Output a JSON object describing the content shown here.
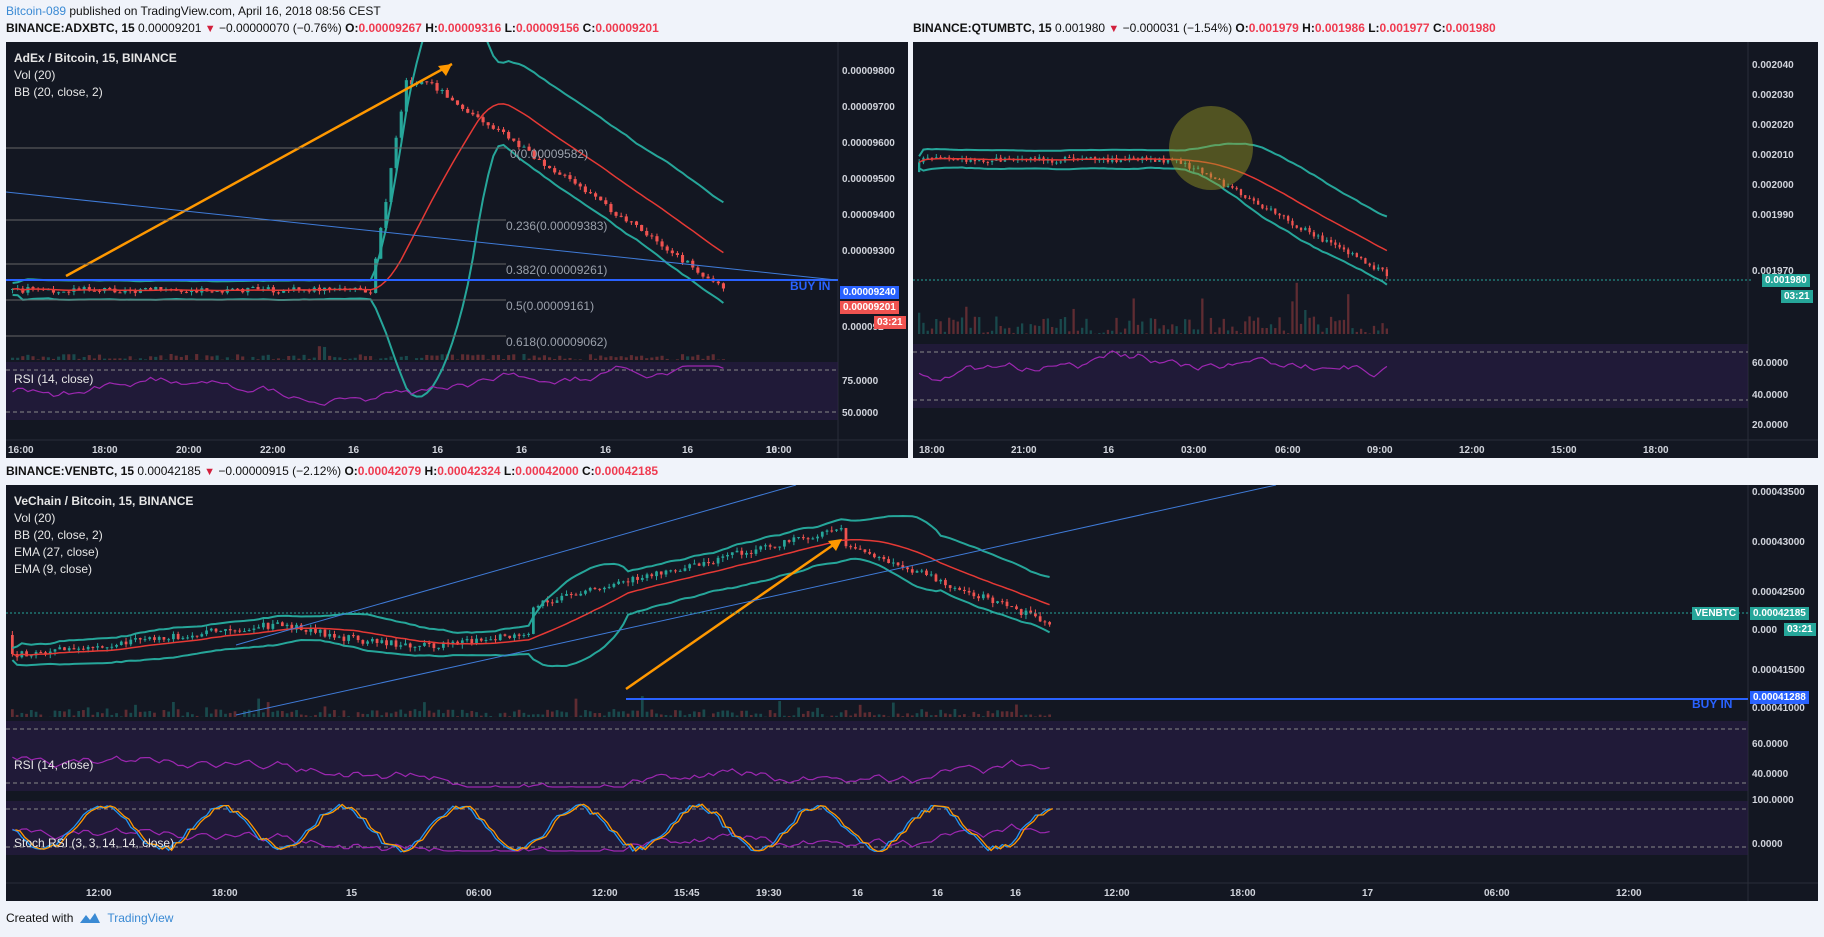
{
  "header": {
    "author": "Bitcoin-089",
    "published": " published on TradingView.com, April 16, 2018 08:56 CEST"
  },
  "footer": {
    "created": "Created with",
    "brand": "TradingView"
  },
  "charts": {
    "adx": {
      "symbol": "BINANCE:ADXBTC, 15",
      "last": "0.00009201",
      "chg": "−0.00000070 (−0.76%)",
      "o": "0.00009267",
      "h": "0.00009316",
      "l": "0.00009156",
      "c": "0.00009201",
      "legend": [
        "AdEx / Bitcoin, 15, BINANCE",
        "Vol (20)",
        "BB (20, close, 2)"
      ],
      "rsi_label": "RSI (14, close)",
      "fib": [
        "0(0.00009582)",
        "0.236(0.00009383)",
        "0.382(0.00009261)",
        "0.5(0.00009161)",
        "0.618(0.00009062)"
      ],
      "buy_in": "BUY IN",
      "price_ticks": [
        "0.00009800",
        "0.00009700",
        "0.00009600",
        "0.00009500",
        "0.00009400",
        "0.00009300",
        "0.000092"
      ],
      "rsi_ticks": [
        "75.0000",
        "50.0000"
      ],
      "time_ticks": [
        "16:00",
        "18:00",
        "20:00",
        "22:00",
        "16",
        "16",
        "16",
        "16",
        "16",
        "16",
        "10:00"
      ],
      "tags": {
        "buy": "0.00009240",
        "last": "0.00009201",
        "timer": "03:21"
      }
    },
    "qtum": {
      "symbol": "BINANCE:QTUMBTC, 15",
      "last": "0.001980",
      "chg": "−0.000031 (−1.54%)",
      "o": "0.001979",
      "h": "0.001986",
      "l": "0.001977",
      "c": "0.001980",
      "price_ticks": [
        "0.002040",
        "0.002030",
        "0.002020",
        "0.002010",
        "0.002000",
        "0.001990",
        "0.001970"
      ],
      "rsi_ticks": [
        "60.0000",
        "40.0000",
        "20.0000"
      ],
      "time_ticks": [
        "18:00",
        "21:00",
        "16",
        "03:00",
        "06:00",
        "09:00",
        "12:00",
        "15:00",
        "18:00"
      ],
      "tags": {
        "last": "0.001980",
        "timer": "03:21"
      }
    },
    "ven": {
      "symbol": "BINANCE:VENBTC, 15",
      "last": "0.00042185",
      "chg": "−0.00000915 (−2.12%)",
      "o": "0.00042079",
      "h": "0.00042324",
      "l": "0.00042000",
      "c": "0.00042185",
      "legend": [
        "VeChain / Bitcoin, 15, BINANCE",
        "Vol (20)",
        "BB (20, close, 2)",
        "EMA (27, close)",
        "EMA (9, close)"
      ],
      "rsi_label": "RSI (14, close)",
      "stoch_label": "Stoch RSI (3, 3, 14, 14, close)",
      "buy_in": "BUY IN",
      "price_ticks": [
        "0.00043500",
        "0.00043000",
        "0.00042500",
        "0.000",
        "0.00041500",
        "0.00041000"
      ],
      "rsi_ticks": [
        "60.0000",
        "40.0000"
      ],
      "stoch_ticks": [
        "100.0000",
        "0.0000"
      ],
      "time_ticks": [
        "12:00",
        "18:00",
        "15",
        "06:00",
        "12:00",
        "15:45",
        "19:30",
        "16",
        "16",
        "16",
        "12:00",
        "18:00",
        "17",
        "06:00",
        "12:00"
      ],
      "tags": {
        "sym": "VENBTC",
        "last": "0.00042185",
        "timer": "03:21",
        "buy": "0.00041288"
      }
    }
  },
  "chart_data": [
    {
      "type": "candlestick",
      "title": "AdEx / Bitcoin, 15, BINANCE",
      "annotations": [
        "Fibonacci retracement",
        "BUY IN 0.00009240"
      ],
      "ylim": [
        9e-05,
        9.9e-05
      ]
    },
    {
      "type": "candlestick",
      "title": "BINANCE:QTUMBTC, 15",
      "ylim": [
        0.001965,
        0.002045
      ]
    },
    {
      "type": "candlestick",
      "title": "VeChain / Bitcoin, 15, BINANCE",
      "annotations": [
        "BUY IN 0.00041288"
      ],
      "ylim": [
        0.000409,
        0.000436
      ]
    }
  ],
  "colors": {
    "bg": "#131722",
    "up": "#26a69a",
    "down": "#ef5350",
    "bb": "#26a69a",
    "ema_red": "#e53935",
    "ema_blue": "#3f51b5",
    "rsi": "#9c27b0",
    "buy": "#2962ff"
  }
}
